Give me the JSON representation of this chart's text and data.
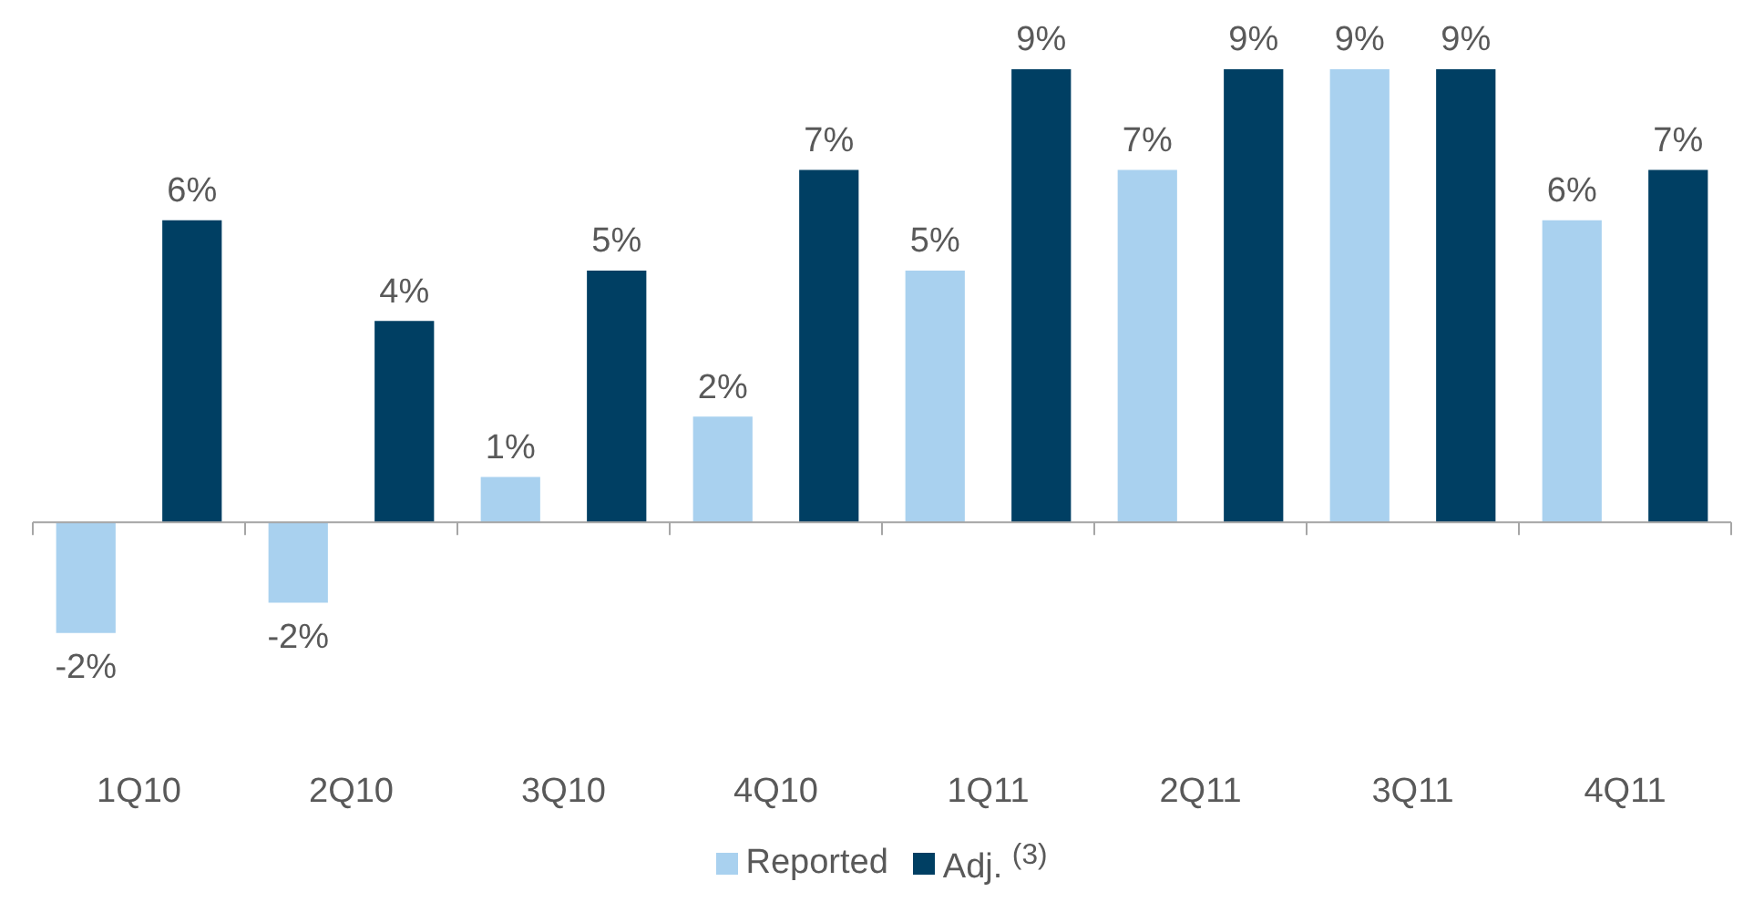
{
  "chart_data": {
    "type": "bar",
    "categories": [
      "1Q10",
      "2Q10",
      "3Q10",
      "4Q10",
      "1Q11",
      "2Q11",
      "3Q11",
      "4Q11"
    ],
    "series": [
      {
        "name": "Reported",
        "color": "#a9d1ef",
        "values": [
          -2.2,
          -1.6,
          0.9,
          2.1,
          5,
          7,
          9,
          6
        ],
        "value_labels": [
          "-2%",
          "-2%",
          "1%",
          "2%",
          "5%",
          "7%",
          "9%",
          "6%"
        ]
      },
      {
        "name": "Adj. $^{(3)}$",
        "color": "#003f63",
        "values": [
          6,
          4,
          5,
          7,
          9,
          9,
          9,
          7
        ],
        "value_labels": [
          "6%",
          "4%",
          "5%",
          "7%",
          "9%",
          "9%",
          "9%",
          "7%"
        ]
      }
    ],
    "legend": "bottom",
    "grid": false
  }
}
